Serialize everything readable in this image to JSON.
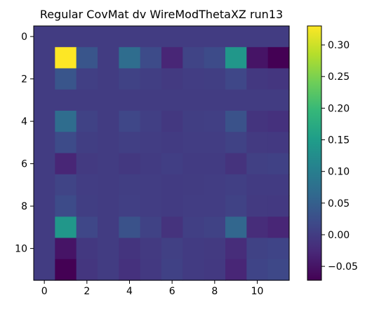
{
  "chart_data": {
    "type": "heatmap",
    "title": "Regular CovMat dv WireModThetaXZ run13",
    "xlabel": "",
    "ylabel": "",
    "xlim": [
      -0.5,
      11.5
    ],
    "ylim": [
      11.5,
      -0.5
    ],
    "x_ticks": [
      0,
      2,
      4,
      6,
      8,
      10
    ],
    "y_ticks": [
      0,
      2,
      4,
      6,
      8,
      10
    ],
    "colormap": "viridis",
    "colorbar": {
      "min": -0.072,
      "max": 0.33,
      "ticks": [
        -0.05,
        0.0,
        0.05,
        0.1,
        0.15,
        0.2,
        0.25,
        0.3
      ],
      "tick_labels": [
        "−0.05",
        "0.00",
        "0.05",
        "0.10",
        "0.15",
        "0.20",
        "0.25",
        "0.30"
      ]
    },
    "matrix": [
      [
        0.0,
        0.0,
        0.0,
        0.0,
        0.0,
        0.0,
        0.0,
        0.0,
        0.0,
        0.0,
        0.0,
        0.0
      ],
      [
        0.0,
        0.33,
        0.035,
        0.0,
        0.07,
        0.02,
        -0.03,
        0.01,
        0.02,
        0.14,
        -0.05,
        -0.072
      ],
      [
        0.0,
        0.035,
        0.004,
        0.0,
        0.008,
        0.002,
        -0.003,
        0.001,
        0.002,
        0.015,
        -0.006,
        -0.008
      ],
      [
        0.0,
        0.0,
        0.0,
        0.0,
        0.0,
        0.0,
        0.0,
        0.0,
        0.0,
        0.0,
        0.0,
        0.0
      ],
      [
        0.0,
        0.07,
        0.008,
        0.0,
        0.015,
        0.004,
        -0.006,
        0.002,
        0.004,
        0.03,
        -0.011,
        -0.015
      ],
      [
        0.0,
        0.02,
        0.002,
        0.0,
        0.004,
        0.001,
        -0.002,
        0.001,
        0.001,
        0.008,
        -0.003,
        -0.004
      ],
      [
        0.0,
        -0.03,
        -0.003,
        0.0,
        -0.006,
        -0.002,
        0.003,
        -0.001,
        -0.002,
        -0.013,
        0.005,
        0.007
      ],
      [
        0.0,
        0.01,
        0.001,
        0.0,
        0.002,
        0.001,
        -0.001,
        0.0,
        0.001,
        0.004,
        -0.002,
        -0.002
      ],
      [
        0.0,
        0.02,
        0.002,
        0.0,
        0.004,
        0.001,
        -0.002,
        0.001,
        0.001,
        0.008,
        -0.003,
        -0.004
      ],
      [
        0.0,
        0.14,
        0.015,
        0.0,
        0.03,
        0.008,
        -0.013,
        0.004,
        0.008,
        0.06,
        -0.021,
        -0.03
      ],
      [
        0.0,
        -0.05,
        -0.006,
        0.0,
        -0.011,
        -0.003,
        0.005,
        -0.002,
        -0.003,
        -0.021,
        0.008,
        0.011
      ],
      [
        0.0,
        -0.072,
        -0.008,
        0.0,
        -0.015,
        -0.004,
        0.007,
        -0.002,
        -0.004,
        -0.03,
        0.011,
        0.016
      ]
    ]
  }
}
